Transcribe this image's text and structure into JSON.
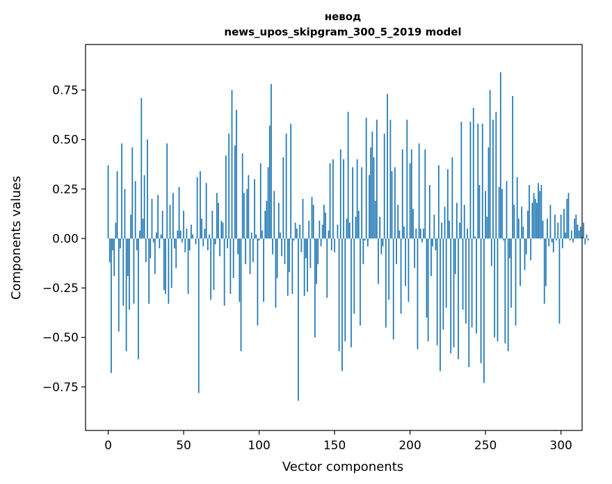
{
  "chart_data": {
    "type": "bar",
    "title": "невод",
    "subtitle": "news_upos_skipgram_300_5_2019 model",
    "xlabel": "Vector components",
    "ylabel": "Components values",
    "xlim": [
      -15,
      314
    ],
    "ylim": [
      -0.97,
      0.98
    ],
    "xticks": [
      0,
      50,
      100,
      150,
      200,
      250,
      300
    ],
    "xtick_labels": [
      "0",
      "50",
      "100",
      "150",
      "200",
      "250",
      "300"
    ],
    "yticks": [
      0.75,
      0.5,
      0.25,
      0.0,
      -0.25,
      -0.5,
      -0.75
    ],
    "ytick_labels": [
      "0.75",
      "0.50",
      "0.25",
      "0.00",
      "−0.25",
      "−0.50",
      "−0.75"
    ],
    "bar_color": "#1f77b4",
    "grid": false,
    "series": [
      {
        "name": "невод",
        "values": [
          0.37,
          -0.12,
          -0.68,
          -0.06,
          -0.19,
          0.08,
          0.34,
          -0.47,
          -0.05,
          0.48,
          -0.34,
          0.25,
          -0.57,
          -0.19,
          -0.36,
          0.12,
          0.46,
          -0.33,
          0.29,
          -0.06,
          -0.61,
          0.04,
          0.71,
          0.1,
          0.32,
          -0.12,
          0.5,
          -0.33,
          -0.1,
          0.2,
          -0.02,
          -0.18,
          0.03,
          0.22,
          -0.05,
          0.02,
          0.14,
          -0.26,
          -0.28,
          0.48,
          -0.33,
          0.17,
          -0.25,
          0.23,
          -0.05,
          -0.15,
          0.04,
          0.26,
          0.04,
          -0.02,
          0.14,
          -0.07,
          0.05,
          -0.28,
          -0.06,
          0.07,
          0.02,
          0.0,
          -0.03,
          0.31,
          -0.78,
          0.34,
          0.1,
          -0.04,
          0.05,
          0.28,
          -0.06,
          0.02,
          -0.31,
          0.14,
          -0.26,
          -0.03,
          0.23,
          0.18,
          -0.09,
          0.09,
          0.08,
          -0.34,
          0.42,
          -0.05,
          0.53,
          -0.28,
          0.75,
          -0.2,
          0.47,
          0.65,
          -0.08,
          -0.32,
          -0.57,
          0.43,
          0.23,
          -0.13,
          0.25,
          0.32,
          -0.18,
          0.03,
          -0.12,
          0.3,
          0.02,
          -0.44,
          -0.01,
          0.38,
          0.04,
          -0.32,
          0.14,
          0.19,
          0.36,
          0.57,
          0.78,
          -0.08,
          0.24,
          -0.35,
          -0.2,
          0.18,
          0.03,
          -0.09,
          0.41,
          -0.13,
          0.53,
          -0.29,
          -0.17,
          0.58,
          -0.28,
          -0.01,
          0.08,
          0.05,
          -0.82,
          0.07,
          -0.07,
          0.2,
          -0.29,
          -0.1,
          -0.27,
          0.09,
          -0.15,
          0.21,
          0.17,
          -0.5,
          -0.23,
          -0.13,
          0.09,
          -0.04,
          0.07,
          0.17,
          0.13,
          -0.3,
          0.04,
          0.38,
          -0.06,
          0.4,
          -0.07,
          0.0,
          0.07,
          -0.57,
          0.45,
          -0.67,
          0.4,
          -0.52,
          0.1,
          0.64,
          0.08,
          -0.55,
          0.36,
          -0.38,
          0.11,
          0.4,
          0.14,
          -0.44,
          0.36,
          -0.13,
          -0.01,
          0.61,
          -0.04,
          0.32,
          0.46,
          0.54,
          0.41,
          0.19,
          0.6,
          -0.23,
          0.11,
          -0.08,
          -0.04,
          0.53,
          -0.45,
          0.73,
          -0.31,
          0.6,
          0.34,
          -0.51,
          0.36,
          -0.13,
          0.17,
          0.04,
          -0.38,
          0.45,
          0.06,
          -0.24,
          0.6,
          -0.32,
          0.38,
          0.45,
          0.15,
          -0.15,
          0.05,
          -0.56,
          0.48,
          0.05,
          -0.02,
          0.05,
          0.45,
          -0.4,
          -0.52,
          0.27,
          -0.19,
          -0.04,
          0.12,
          -0.06,
          -0.54,
          0.37,
          -0.67,
          0.08,
          -0.46,
          0.16,
          -0.35,
          0.35,
          0.09,
          -0.58,
          0.41,
          -0.55,
          -0.18,
          0.18,
          -0.61,
          0.08,
          0.59,
          -0.36,
          0.17,
          -0.43,
          0.05,
          -0.65,
          0.59,
          -0.45,
          0.66,
          0.01,
          -0.48,
          0.58,
          0.27,
          -0.63,
          0.58,
          -0.73,
          0.24,
          0.11,
          0.46,
          0.75,
          -0.14,
          0.6,
          -0.5,
          0.64,
          -0.52,
          0.26,
          0.84,
          0.25,
          -0.01,
          -0.53,
          0.29,
          -0.57,
          -0.1,
          -0.35,
          0.72,
          0.17,
          -0.44,
          0.31,
          0.1,
          -0.24,
          0.16,
          0.06,
          -0.16,
          -0.08,
          0.14,
          0.27,
          -0.11,
          0.18,
          0.23,
          0.2,
          0.18,
          0.28,
          0.24,
          0.27,
          0.09,
          -0.33,
          -0.24,
          0.1,
          -0.04,
          0.17,
          -0.02,
          -0.07,
          0.12,
          -0.01,
          0.08,
          -0.43,
          0.12,
          -0.05,
          0.15,
          0.03,
          0.2,
          0.23,
          -0.01,
          0.04,
          -0.02,
          0.1,
          0.12,
          0.07,
          0.04,
          0.06,
          0.01,
          0.08,
          -0.03,
          0.02,
          -0.01
        ]
      }
    ]
  }
}
